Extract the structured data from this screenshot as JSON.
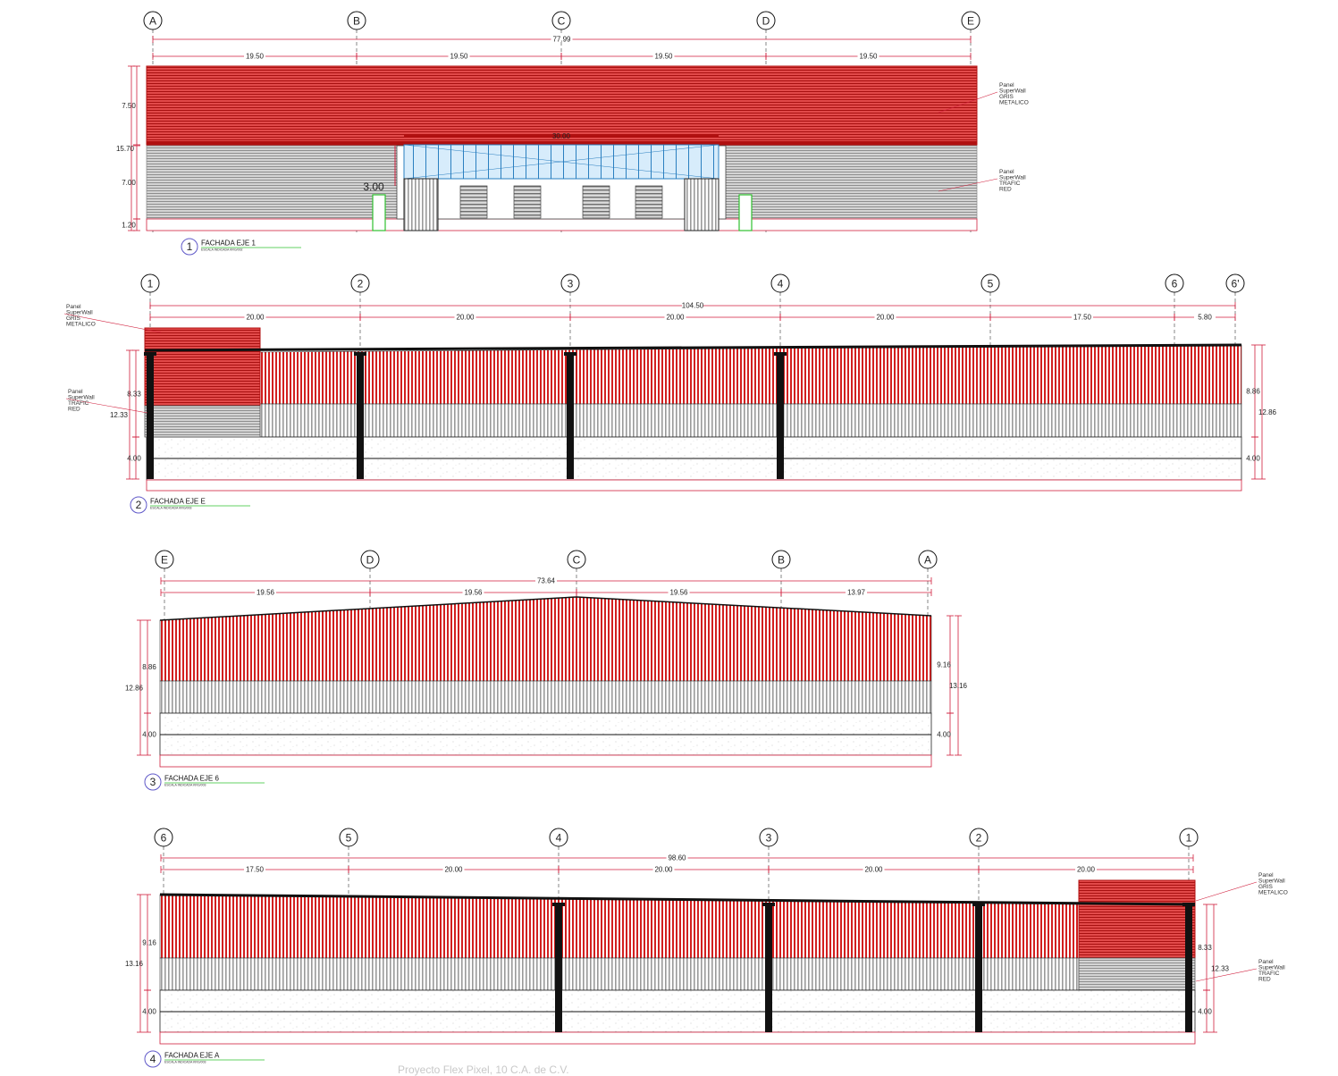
{
  "colors": {
    "red_panel": "#d21f1f",
    "red_dark": "#b01010",
    "gray_panel": "#b5b5b5",
    "glass": "#d7ecfb",
    "glass_line": "#2a7fc0",
    "dim_line": "#d01e3c",
    "column": "#111111",
    "green": "#2fc02f"
  },
  "panel_notes": {
    "gris": [
      "Panel",
      "SuperWall",
      "GRIS",
      "METALICO"
    ],
    "red": [
      "Panel",
      "SuperWall",
      "TRAFIC",
      "RED"
    ]
  },
  "footer_text": "Proyecto Flex Pixel, 10 C.A. de C.V.",
  "elevations": [
    {
      "id": "fachada-eje-1",
      "number": "1",
      "title": "FACHADA EJE 1",
      "subtitle": "ESCALA  INDICADA                    KRG/002",
      "axes": [
        "A",
        "B",
        "C",
        "D",
        "E"
      ],
      "overall_dim": "77.99",
      "spans": [
        "19.50",
        "19.50",
        "19.50",
        "19.50"
      ],
      "vertical_dims": [
        "7.50",
        "15.70",
        "7.00",
        "1.20"
      ],
      "canopy_dim": "30.00",
      "door_dim": "3.00"
    },
    {
      "id": "fachada-eje-e",
      "number": "2",
      "title": "FACHADA EJE E",
      "subtitle": "ESCALA  INDICADA                    KRG/003",
      "axes": [
        "1",
        "2",
        "3",
        "4",
        "5",
        "6",
        "6'"
      ],
      "overall_dim": "104.50",
      "spans": [
        "20.00",
        "20.00",
        "20.00",
        "20.00",
        "17.50",
        "5.80"
      ],
      "left_dims": [
        "8.33",
        "12.33",
        "4.00"
      ],
      "right_dims": [
        "8.86",
        "12.86",
        "4.00"
      ]
    },
    {
      "id": "fachada-eje-6",
      "number": "3",
      "title": "FACHADA EJE 6",
      "subtitle": "ESCALA  INDICADA                    KRG/003",
      "axes": [
        "E",
        "D",
        "C",
        "B",
        "A"
      ],
      "overall_dim": "73.64",
      "spans": [
        "19.56",
        "19.56",
        "19.56",
        "13.97"
      ],
      "left_dims": [
        "8.86",
        "12.86",
        "4.00"
      ],
      "right_dims": [
        "9.16",
        "13.16",
        "4.00"
      ]
    },
    {
      "id": "fachada-eje-a",
      "number": "4",
      "title": "FACHADA EJE A",
      "subtitle": "ESCALA  INDICADA                    KRG/003",
      "axes": [
        "6",
        "5",
        "4",
        "3",
        "2",
        "1"
      ],
      "overall_dim": "98.60",
      "spans": [
        "17.50",
        "20.00",
        "20.00",
        "20.00",
        "20.00"
      ],
      "left_dims": [
        "9.16",
        "13.16",
        "4.00"
      ],
      "right_dims": [
        "8.33",
        "12.33",
        "4.00"
      ]
    }
  ]
}
